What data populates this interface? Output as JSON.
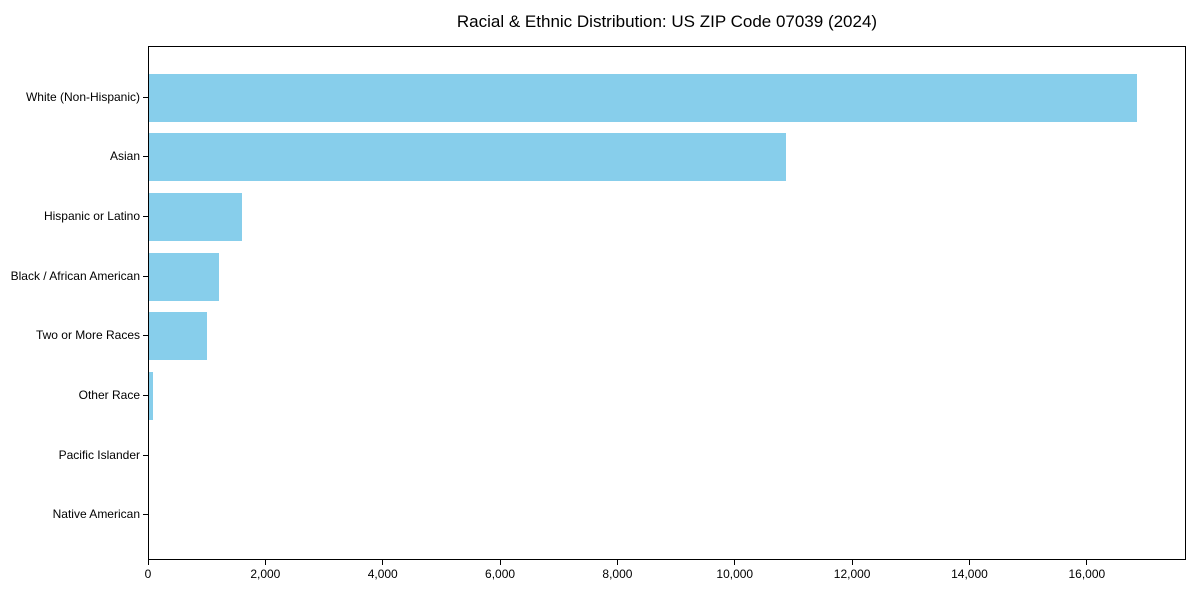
{
  "title": "Racial & Ethnic Distribution: US ZIP Code 07039 (2024)",
  "chart_data": {
    "type": "bar",
    "orientation": "horizontal",
    "title": "Racial & Ethnic Distribution: US ZIP Code 07039 (2024)",
    "categories": [
      "White (Non-Hispanic)",
      "Asian",
      "Hispanic or Latino",
      "Black / African American",
      "Two or More Races",
      "Other Race",
      "Pacific Islander",
      "Native American"
    ],
    "values": [
      16840,
      10850,
      1590,
      1200,
      980,
      65,
      0,
      0
    ],
    "xlabel": "",
    "ylabel": "",
    "xlim": [
      0,
      17690
    ],
    "x_ticks": [
      0,
      2000,
      4000,
      6000,
      8000,
      10000,
      12000,
      14000,
      16000
    ],
    "x_tick_labels": [
      "0",
      "2,000",
      "4,000",
      "6,000",
      "8,000",
      "10,000",
      "12,000",
      "14,000",
      "16,000"
    ],
    "bar_color": "#87CEEB",
    "axis_color": "#000000",
    "background_color": "#ffffff",
    "grid": false,
    "legend": null
  }
}
